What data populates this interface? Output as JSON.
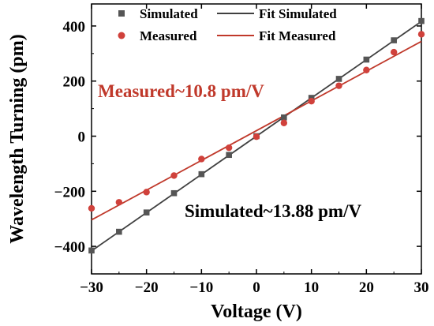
{
  "chart_data": {
    "type": "scatter",
    "xlabel": "Voltage (V)",
    "ylabel": "Wavelength Turning (pm)",
    "xlim": [
      -30,
      30
    ],
    "ylim": [
      -500,
      480
    ],
    "xticks": [
      -30,
      -20,
      -10,
      0,
      10,
      20,
      30
    ],
    "xtick_labels": [
      "−30",
      "−20",
      "−10",
      "0",
      "10",
      "20",
      "30"
    ],
    "yticks": [
      -400,
      -200,
      0,
      200,
      400
    ],
    "ytick_labels": [
      "−400",
      "−200",
      "0",
      "200",
      "400"
    ],
    "grid": false,
    "legend_position": "top",
    "series": [
      {
        "name": "Simulated",
        "marker": "square",
        "color": "#555555",
        "x": [
          -30,
          -25,
          -20,
          -15,
          -10,
          -5,
          0,
          5,
          10,
          15,
          20,
          25,
          30
        ],
        "y": [
          -415,
          -347,
          -277,
          -207,
          -138,
          -68,
          0,
          68,
          139,
          208,
          278,
          348,
          418
        ]
      },
      {
        "name": "Measured",
        "marker": "circle",
        "color": "#d0413b",
        "x": [
          -30,
          -25,
          -20,
          -15,
          -10,
          -5,
          0,
          5,
          10,
          15,
          20,
          25,
          30
        ],
        "y": [
          -262,
          -240,
          -203,
          -143,
          -83,
          -42,
          -2,
          48,
          127,
          183,
          240,
          305,
          370
        ]
      }
    ],
    "fits": [
      {
        "name": "Fit Simulated",
        "color": "#404040",
        "slope": 13.88,
        "intercept": 0
      },
      {
        "name": "Fit Measured",
        "color": "#c0392b",
        "slope": 10.8,
        "intercept": 20
      }
    ],
    "annotations": [
      {
        "text": "Measured~10.8 pm/V",
        "color": "#c0392b"
      },
      {
        "text": "Simulated~13.88 pm/V",
        "color": "#000000"
      }
    ]
  }
}
